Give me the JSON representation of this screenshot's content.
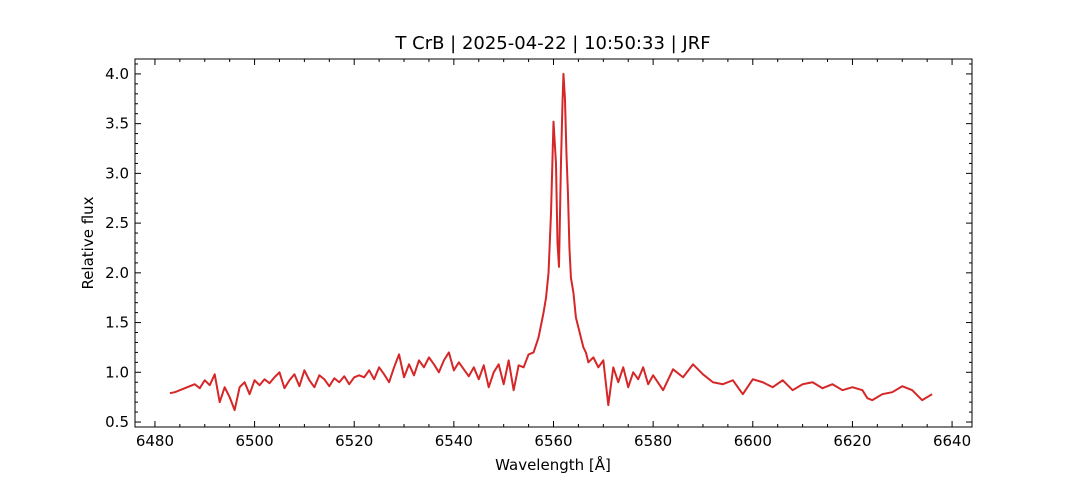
{
  "chart_data": {
    "type": "line",
    "title": "T CrB | 2025-04-22 | 10:50:33 | JRF",
    "xlabel": "Wavelength [Å]",
    "ylabel": "Relative flux",
    "xlim": [
      6476,
      6644
    ],
    "ylim": [
      0.45,
      4.15
    ],
    "xticks": [
      6480,
      6500,
      6520,
      6540,
      6560,
      6580,
      6600,
      6620,
      6640
    ],
    "yticks": [
      0.5,
      1.0,
      1.5,
      2.0,
      2.5,
      3.0,
      3.5,
      4.0
    ],
    "tick_direction": "in",
    "minor_ticks": true,
    "grid": false,
    "series": [
      {
        "color": "#d62728",
        "x": [
          6483.0,
          6484.0,
          6485.0,
          6486.0,
          6487.0,
          6488.0,
          6489.0,
          6490.0,
          6491.0,
          6492.0,
          6493.0,
          6494.0,
          6495.0,
          6496.0,
          6497.0,
          6498.0,
          6499.0,
          6500.0,
          6501.0,
          6502.0,
          6503.0,
          6504.0,
          6505.0,
          6506.0,
          6507.0,
          6508.0,
          6509.0,
          6510.0,
          6511.0,
          6512.0,
          6513.0,
          6514.0,
          6515.0,
          6516.0,
          6517.0,
          6518.0,
          6519.0,
          6520.0,
          6521.0,
          6522.0,
          6523.0,
          6524.0,
          6525.0,
          6526.0,
          6527.0,
          6528.0,
          6529.0,
          6530.0,
          6531.0,
          6532.0,
          6533.0,
          6534.0,
          6535.0,
          6536.0,
          6537.0,
          6538.0,
          6539.0,
          6540.0,
          6541.0,
          6542.0,
          6543.0,
          6544.0,
          6545.0,
          6546.0,
          6547.0,
          6548.0,
          6549.0,
          6550.0,
          6551.0,
          6552.0,
          6553.0,
          6554.0,
          6555.0,
          6556.0,
          6557.0,
          6558.0,
          6558.5,
          6559.0,
          6559.5,
          6560.0,
          6560.5,
          6560.8,
          6561.1,
          6561.5,
          6561.8,
          6562.0,
          6562.3,
          6562.6,
          6562.9,
          6563.2,
          6563.5,
          6564.0,
          6564.5,
          6565.0,
          6565.5,
          6566.0,
          6566.5,
          6567.0,
          6568.0,
          6569.0,
          6570.0,
          6571.0,
          6572.0,
          6573.0,
          6574.0,
          6575.0,
          6576.0,
          6577.0,
          6578.0,
          6579.0,
          6580.0,
          6582.0,
          6584.0,
          6586.0,
          6588.0,
          6590.0,
          6592.0,
          6594.0,
          6596.0,
          6598.0,
          6600.0,
          6602.0,
          6604.0,
          6606.0,
          6608.0,
          6610.0,
          6612.0,
          6614.0,
          6616.0,
          6618.0,
          6620.0,
          6622.0,
          6623.0,
          6624.0,
          6626.0,
          6628.0,
          6630.0,
          6632.0,
          6634.0,
          6636.0
        ],
        "y": [
          0.79,
          0.8,
          0.82,
          0.84,
          0.86,
          0.88,
          0.84,
          0.92,
          0.87,
          0.98,
          0.7,
          0.85,
          0.75,
          0.62,
          0.85,
          0.9,
          0.78,
          0.92,
          0.87,
          0.93,
          0.89,
          0.95,
          1.0,
          0.84,
          0.92,
          0.98,
          0.86,
          1.02,
          0.92,
          0.85,
          0.97,
          0.93,
          0.86,
          0.94,
          0.9,
          0.96,
          0.88,
          0.95,
          0.97,
          0.95,
          1.02,
          0.93,
          1.05,
          0.98,
          0.9,
          1.05,
          1.18,
          0.95,
          1.08,
          0.97,
          1.12,
          1.05,
          1.15,
          1.08,
          1.0,
          1.12,
          1.2,
          1.02,
          1.1,
          1.03,
          0.96,
          1.05,
          0.93,
          1.07,
          0.85,
          1.0,
          1.08,
          0.88,
          1.12,
          0.82,
          1.07,
          1.05,
          1.18,
          1.2,
          1.35,
          1.6,
          1.75,
          2.0,
          2.6,
          3.52,
          3.1,
          2.3,
          2.06,
          3.1,
          3.7,
          4.0,
          3.75,
          3.2,
          2.8,
          2.25,
          1.95,
          1.8,
          1.55,
          1.45,
          1.35,
          1.25,
          1.2,
          1.1,
          1.15,
          1.05,
          1.12,
          0.67,
          1.05,
          0.9,
          1.05,
          0.85,
          1.0,
          0.93,
          1.05,
          0.88,
          0.97,
          0.82,
          1.03,
          0.95,
          1.08,
          0.98,
          0.9,
          0.88,
          0.92,
          0.78,
          0.93,
          0.9,
          0.85,
          0.92,
          0.82,
          0.88,
          0.9,
          0.84,
          0.88,
          0.82,
          0.85,
          0.82,
          0.74,
          0.72,
          0.78,
          0.8,
          0.86,
          0.82,
          0.72,
          0.78
        ]
      }
    ]
  }
}
